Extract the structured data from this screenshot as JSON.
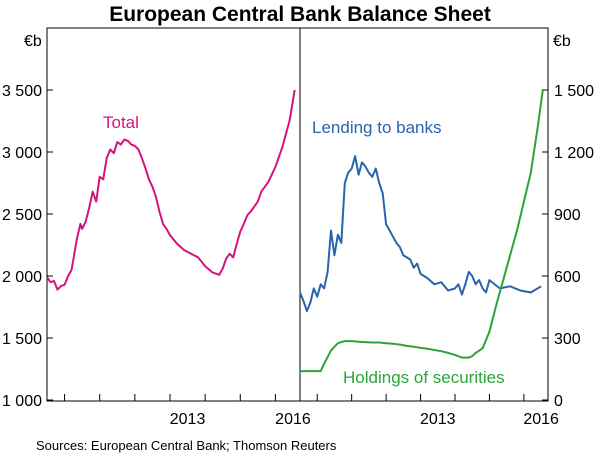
{
  "title": "European Central Bank Balance Sheet",
  "source": "Sources:   European Central Bank; Thomson Reuters",
  "colors": {
    "total": "#d6137d",
    "lending": "#2a64aa",
    "securities": "#2ca33a",
    "axis": "#000000"
  },
  "chart_data": [
    {
      "type": "line",
      "panel": "left",
      "unit": "€b",
      "ylim": [
        1000,
        3500
      ],
      "yticks": [
        "1 000",
        "1 500",
        "2 000",
        "2 500",
        "3 000",
        "3 500"
      ],
      "xlim": [
        2009.5,
        2016.7
      ],
      "xticks": [
        "2013",
        "2016"
      ],
      "grid": false,
      "series": [
        {
          "name": "Total",
          "color_key": "total",
          "x": [
            2009.5,
            2009.6,
            2009.7,
            2009.8,
            2009.9,
            2010.0,
            2010.1,
            2010.2,
            2010.35,
            2010.45,
            2010.5,
            2010.6,
            2010.7,
            2010.8,
            2010.9,
            2011.0,
            2011.1,
            2011.2,
            2011.3,
            2011.4,
            2011.5,
            2011.6,
            2011.7,
            2011.8,
            2011.9,
            2012.0,
            2012.1,
            2012.2,
            2012.3,
            2012.4,
            2012.5,
            2012.6,
            2012.7,
            2012.8,
            2012.9,
            2013.0,
            2013.2,
            2013.4,
            2013.6,
            2013.8,
            2014.0,
            2014.2,
            2014.4,
            2014.5,
            2014.6,
            2014.7,
            2014.8,
            2014.9,
            2015.0,
            2015.1,
            2015.2,
            2015.3,
            2015.4,
            2015.5,
            2015.6,
            2015.8,
            2016.0,
            2016.2,
            2016.4,
            2016.55
          ],
          "values": [
            1990,
            1950,
            1960,
            1890,
            1920,
            1930,
            2000,
            2050,
            2300,
            2420,
            2380,
            2440,
            2550,
            2680,
            2600,
            2800,
            2780,
            2950,
            3020,
            2990,
            3080,
            3060,
            3100,
            3090,
            3060,
            3050,
            3020,
            2950,
            2870,
            2780,
            2720,
            2640,
            2520,
            2420,
            2380,
            2330,
            2260,
            2210,
            2180,
            2150,
            2080,
            2030,
            2010,
            2060,
            2140,
            2180,
            2150,
            2260,
            2360,
            2420,
            2490,
            2520,
            2560,
            2600,
            2680,
            2760,
            2880,
            3040,
            3250,
            3500
          ]
        }
      ]
    },
    {
      "type": "line",
      "panel": "right",
      "unit": "€b",
      "ylim": [
        0,
        1500
      ],
      "yticks": [
        "0",
        "300",
        "600",
        "900",
        "1 200",
        "1 500"
      ],
      "xlim": [
        2009.5,
        2016.7
      ],
      "xticks": [
        "2013",
        "2016"
      ],
      "grid": false,
      "series": [
        {
          "name": "Lending to banks",
          "color_key": "lending",
          "x": [
            2009.5,
            2009.6,
            2009.7,
            2009.8,
            2009.9,
            2010.0,
            2010.1,
            2010.2,
            2010.3,
            2010.4,
            2010.5,
            2010.6,
            2010.7,
            2010.8,
            2010.9,
            2011.0,
            2011.1,
            2011.2,
            2011.3,
            2011.4,
            2011.5,
            2011.6,
            2011.7,
            2011.8,
            2011.9,
            2012.0,
            2012.1,
            2012.2,
            2012.3,
            2012.4,
            2012.5,
            2012.6,
            2012.7,
            2012.8,
            2012.9,
            2013.0,
            2013.2,
            2013.4,
            2013.6,
            2013.8,
            2014.0,
            2014.1,
            2014.2,
            2014.3,
            2014.4,
            2014.5,
            2014.6,
            2014.7,
            2014.8,
            2014.9,
            2015.0,
            2015.3,
            2015.6,
            2015.9,
            2016.2,
            2016.5
          ],
          "values": [
            520,
            480,
            430,
            470,
            540,
            500,
            560,
            540,
            620,
            820,
            700,
            800,
            760,
            1050,
            1100,
            1120,
            1180,
            1090,
            1150,
            1130,
            1100,
            1080,
            1120,
            1050,
            1000,
            850,
            820,
            790,
            760,
            740,
            700,
            690,
            680,
            640,
            660,
            610,
            590,
            560,
            570,
            530,
            540,
            560,
            510,
            560,
            620,
            600,
            560,
            580,
            540,
            520,
            580,
            540,
            550,
            530,
            520,
            550
          ]
        },
        {
          "name": "Holdings of securities",
          "color_key": "securities",
          "x": [
            2009.5,
            2009.7,
            2009.9,
            2010.1,
            2010.2,
            2010.4,
            2010.6,
            2010.8,
            2011.0,
            2011.2,
            2011.4,
            2011.6,
            2011.8,
            2012.0,
            2012.2,
            2012.4,
            2012.6,
            2012.8,
            2013.0,
            2013.2,
            2013.4,
            2013.6,
            2013.8,
            2014.0,
            2014.2,
            2014.4,
            2014.5,
            2014.6,
            2014.8,
            2015.0,
            2015.2,
            2015.4,
            2015.6,
            2015.8,
            2016.0,
            2016.2,
            2016.4,
            2016.55
          ],
          "values": [
            140,
            140,
            140,
            140,
            175,
            240,
            275,
            285,
            285,
            282,
            280,
            278,
            278,
            275,
            272,
            268,
            262,
            258,
            252,
            248,
            242,
            236,
            228,
            218,
            205,
            205,
            212,
            228,
            250,
            330,
            460,
            580,
            700,
            820,
            960,
            1100,
            1320,
            1500
          ]
        }
      ]
    }
  ]
}
